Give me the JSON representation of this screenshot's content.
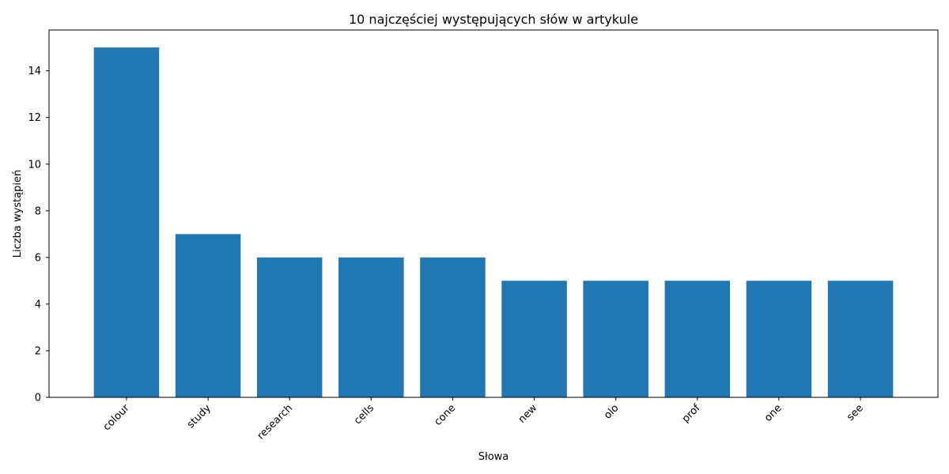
{
  "chart_data": {
    "type": "bar",
    "title": "10 najczęściej występujących słów w artykule",
    "xlabel": "Słowa",
    "ylabel": "Liczba wystąpień",
    "categories": [
      "colour",
      "study",
      "research",
      "cells",
      "cone",
      "new",
      "olo",
      "prof",
      "one",
      "see"
    ],
    "values": [
      15,
      7,
      6,
      6,
      6,
      5,
      5,
      5,
      5,
      5
    ],
    "ylim": [
      0,
      15.75
    ],
    "yticks": [
      "0",
      "2",
      "4",
      "6",
      "8",
      "10",
      "12",
      "14"
    ],
    "grid": false,
    "bar_color": "#1f77b4"
  }
}
